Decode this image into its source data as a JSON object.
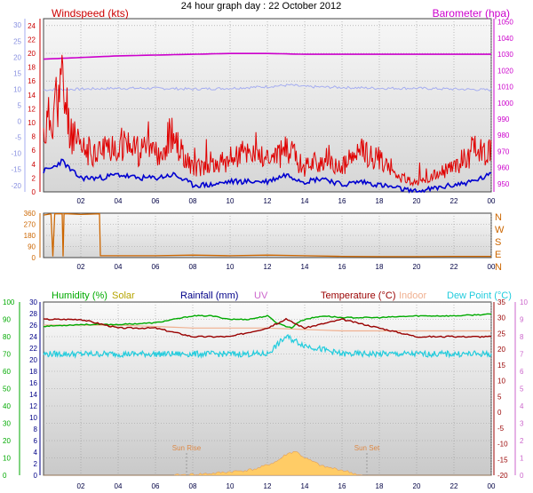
{
  "page": {
    "title": "24 hour graph day : 22 October 2012"
  },
  "colors": {
    "wind": "#e00000",
    "gust": "#e00000",
    "avgwind": "#0000d0",
    "baro": "#cc00cc",
    "baroAlt": "#a6aef0",
    "dir": "#cc6600",
    "humidity": "#00aa00",
    "solar": "#b5a400",
    "rain": "#000088",
    "uv": "#cc66cc",
    "temp": "#990000",
    "indoor": "#f0b090",
    "dew": "#22ccdd",
    "solarFill": "#ffcc66",
    "plotBg": "#dcdcdc",
    "plotBgTop": "#f6f6f6",
    "grid": "#888888"
  },
  "time_labels": [
    "02",
    "04",
    "06",
    "08",
    "10",
    "12",
    "14",
    "16",
    "18",
    "20",
    "22",
    "00"
  ],
  "chart_data": [
    {
      "type": "line",
      "panel": "wind-barometer",
      "left_axis": {
        "label": "Windspeed (kts)",
        "ticks_red": [
          24,
          22,
          20,
          18,
          16,
          14,
          12,
          10,
          8,
          6,
          4,
          2,
          0
        ],
        "ticks_blue": [
          30,
          25,
          20,
          15,
          10,
          5,
          0,
          -5,
          -10,
          -15,
          -20
        ],
        "ylim": [
          0,
          25
        ]
      },
      "right_axis": {
        "label": "Barometer (hpa)",
        "ticks": [
          1050,
          1040,
          1030,
          1020,
          1010,
          1000,
          990,
          980,
          970,
          960,
          950
        ],
        "ylim": [
          945,
          1052
        ]
      },
      "series": [
        {
          "name": "Barometer (hpa)",
          "x": [
            0,
            2,
            4,
            6,
            8,
            10,
            12,
            14,
            16,
            18,
            20,
            22,
            24
          ],
          "values": [
            1027,
            1028,
            1029,
            1029.5,
            1030,
            1030.5,
            1030.5,
            1030,
            1030,
            1030,
            1030,
            1030,
            1030
          ]
        },
        {
          "name": "Barometer 2",
          "x": [
            0,
            2,
            4,
            6,
            8,
            10,
            12,
            13.2,
            14,
            16,
            18,
            20,
            22,
            24
          ],
          "values": [
            1008,
            1008.5,
            1009,
            1009,
            1008.5,
            1009,
            1010,
            1011,
            1010,
            1009.5,
            1009,
            1009,
            1008.5,
            1008
          ]
        },
        {
          "name": "Gust",
          "x": [
            0,
            0.5,
            1,
            1.5,
            2,
            3,
            4,
            5,
            6,
            7,
            8,
            9,
            10,
            11,
            12,
            13,
            14,
            14.5,
            15,
            16,
            17,
            18,
            19,
            20,
            21,
            22,
            23,
            24
          ],
          "values": [
            7,
            10,
            13,
            7,
            5,
            5,
            6,
            5,
            5,
            6,
            3,
            3,
            4,
            5,
            4,
            5,
            3,
            4,
            3,
            3,
            5,
            4,
            2,
            1,
            2,
            3,
            5,
            5
          ]
        },
        {
          "name": "Average",
          "x": [
            0,
            0.5,
            1,
            1.5,
            2,
            3,
            4,
            5,
            6,
            7,
            8,
            9,
            10,
            11,
            12,
            13,
            14,
            15,
            16,
            17,
            18,
            19,
            20,
            21,
            22,
            23,
            24
          ],
          "values": [
            3,
            3.5,
            4.5,
            3,
            2,
            2,
            2.5,
            2,
            2,
            2.5,
            1,
            1,
            1.5,
            1.5,
            1.5,
            2.5,
            1.5,
            2,
            1,
            1.5,
            1,
            0.5,
            0,
            0.5,
            1,
            1.5,
            2.5
          ]
        }
      ]
    },
    {
      "type": "line",
      "panel": "wind-direction",
      "left_axis": {
        "ticks": [
          360,
          270,
          180,
          90,
          0
        ],
        "ylim": [
          0,
          360
        ]
      },
      "right_axis": {
        "ticks": [
          "N",
          "W",
          "S",
          "E",
          "N"
        ]
      },
      "series": [
        {
          "name": "Direction",
          "x": [
            0,
            0.4,
            0.5,
            0.6,
            0.8,
            1.0,
            1.05,
            1.1,
            1.3,
            2,
            3,
            3.05,
            4,
            6,
            8,
            10,
            12,
            14,
            16,
            18,
            20,
            22,
            24
          ],
          "values": [
            345,
            355,
            10,
            355,
            355,
            355,
            10,
            355,
            355,
            350,
            355,
            15,
            15,
            15,
            20,
            15,
            20,
            15,
            10,
            8,
            8,
            10,
            10
          ]
        }
      ]
    },
    {
      "type": "line",
      "panel": "temperature-humidity",
      "left_axis": {
        "ticks_humidity": [
          100,
          90,
          80,
          70,
          60,
          50,
          40,
          30,
          20,
          10,
          0
        ],
        "ticks_rain": [
          30,
          28,
          26,
          24,
          22,
          20,
          18,
          16,
          14,
          12,
          10,
          8,
          6,
          4,
          2,
          0
        ],
        "ylim": [
          0,
          100
        ]
      },
      "right_axis": {
        "ticks_temp": [
          35,
          30,
          25,
          20,
          15,
          10,
          5,
          0,
          -5,
          -10,
          -15,
          -20
        ],
        "ticks_dew": [
          10,
          9,
          8,
          7,
          6,
          5,
          4,
          3,
          2,
          1,
          0
        ],
        "ylim": [
          -20,
          35
        ]
      },
      "legend": [
        "Humidity (%)",
        "Solar",
        "Rainfall (mm)",
        "UV",
        "Temperature (°C)",
        "Indoor",
        "Dew Point (°C)"
      ],
      "annotations": [
        "Sun Rise",
        "Sun Set"
      ],
      "series": [
        {
          "name": "Humidity (%)",
          "x": [
            0,
            2,
            4,
            6,
            8,
            9,
            10,
            11,
            12,
            12.5,
            13,
            13.3,
            13.6,
            14,
            15,
            16,
            18,
            20,
            22,
            24
          ],
          "values": [
            86,
            87,
            87,
            88,
            92,
            92,
            90,
            90,
            92,
            88,
            86,
            85,
            88,
            90,
            92,
            91,
            91,
            92,
            92,
            93
          ]
        },
        {
          "name": "Indoor",
          "x": [
            0,
            4,
            8,
            12,
            16,
            20,
            24
          ],
          "values": [
            26,
            26,
            25.5,
            25.5,
            25,
            25,
            25
          ]
        },
        {
          "name": "Temperature (°C)",
          "x": [
            0,
            2,
            4,
            6,
            8,
            10,
            12,
            13,
            14,
            16,
            18,
            20,
            22,
            24
          ],
          "values": [
            9,
            9,
            8.5,
            8.5,
            8,
            8,
            8.5,
            9,
            8.5,
            9,
            8.5,
            8,
            8,
            8
          ]
        },
        {
          "name": "Dew Point (°C)",
          "x": [
            0,
            2,
            4,
            6,
            8,
            10,
            12,
            13,
            14,
            16,
            18,
            20,
            22,
            24
          ],
          "values": [
            7,
            7,
            7,
            7,
            7,
            7,
            7,
            8,
            7.5,
            7,
            7,
            7,
            7,
            7
          ]
        },
        {
          "name": "Solar",
          "x": [
            7,
            8,
            9,
            10,
            11,
            11.5,
            12,
            12.5,
            13,
            13.5,
            14,
            15,
            16,
            17,
            24
          ],
          "values": [
            0,
            0.5,
            1,
            2,
            3,
            4,
            6,
            8,
            12,
            14,
            10,
            5,
            3,
            0,
            0
          ]
        }
      ]
    }
  ]
}
